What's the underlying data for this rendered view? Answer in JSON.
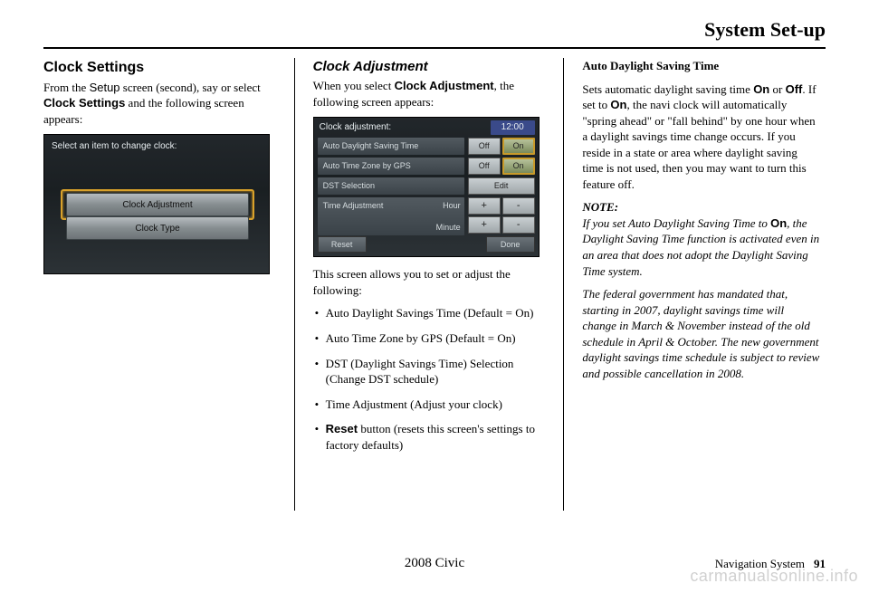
{
  "header": {
    "title": "System Set-up"
  },
  "col1": {
    "title": "Clock Settings",
    "intro_a": "From the ",
    "intro_b": "Setup",
    "intro_c": " screen (second), say or select ",
    "intro_d": "Clock Settings",
    "intro_e": " and the following screen appears:",
    "screen": {
      "title": "Select an item to change clock:",
      "btn1": "Clock Adjustment",
      "btn2": "Clock Type"
    }
  },
  "col2": {
    "title": "Clock Adjustment",
    "intro_a": "When you select ",
    "intro_b": "Clock Adjustment",
    "intro_c": ", the following screen appears:",
    "screen": {
      "header": "Clock adjustment:",
      "time": "12:00",
      "row1": "Auto Daylight Saving Time",
      "row2": "Auto Time Zone by GPS",
      "row3": "DST Selection",
      "off": "Off",
      "on": "On",
      "edit": "Edit",
      "timeadj": "Time Adjustment",
      "hour": "Hour",
      "minute": "Minute",
      "plus": "+",
      "minus": "-",
      "reset": "Reset",
      "done": "Done"
    },
    "after": "This screen allows you to set or adjust the following:",
    "bullets": {
      "b1": "Auto Daylight Savings Time (Default = On)",
      "b2": "Auto Time Zone by GPS (Default = On)",
      "b3": "DST (Daylight Savings Time) Selection (Change DST schedule)",
      "b4": "Time Adjustment (Adjust your clock)",
      "b5a": "Reset",
      "b5b": " button (resets this screen's settings to factory defaults)"
    }
  },
  "col3": {
    "h1": "Auto Daylight Saving Time",
    "p1a": "Sets automatic daylight saving time ",
    "p1b": "On",
    "p1c": " or ",
    "p1d": "Off",
    "p1e": ". If set to ",
    "p1f": "On",
    "p1g": ", the navi clock will automatically \"spring ahead\" or \"fall behind\" by one hour when a daylight savings time change occurs. If you reside in a state or area where daylight saving time is not used, then you may want to turn this feature off.",
    "note_label": "NOTE:",
    "note_a": "If you set Auto Daylight Saving Time to ",
    "note_b": "On",
    "note_c": ", the Daylight Saving Time function is activated even in an area that does not adopt the Daylight Saving Time system.",
    "p2": "The federal government has mandated that, starting in 2007, daylight savings time will change in March & November instead of the old schedule in April & October. The new government daylight savings time schedule is subject to review and possible cancellation in 2008."
  },
  "footer": {
    "center": "2008  Civic",
    "right_label": "Navigation System",
    "page": "91"
  },
  "watermark": "carmanualsonline.info"
}
